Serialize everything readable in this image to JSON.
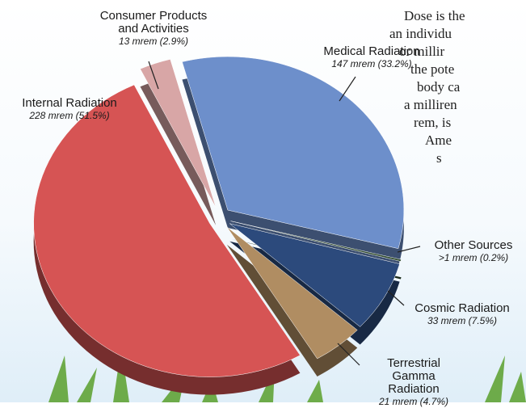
{
  "chart_data": {
    "type": "pie",
    "categories": [
      "Medical Radiation",
      "Other Sources",
      "Cosmic Radiation",
      "Terrestrial Gamma Radiation",
      "Internal Radiation",
      "Consumer Products and Activities"
    ],
    "values": [
      33.2,
      0.2,
      7.5,
      4.7,
      51.5,
      2.9
    ],
    "value_labels": [
      "147 mrem (33.2%)",
      ">1 mrem (0.2%)",
      "33 mrem (7.5%)",
      "21 mrem (4.7%)",
      "228 mrem (51.5%)",
      "13 mrem (2.9%)"
    ],
    "colors": [
      "#6d8fcb",
      "#2f4a2e",
      "#2c4a7c",
      "#b08d62",
      "#d65454",
      "#d8a6a6"
    ]
  },
  "sidebar_text": [
    "Dose is the",
    "an individu",
    "or millir",
    "the pote",
    "body ca",
    "a milliren",
    "rem, is",
    "Ame",
    "s"
  ]
}
